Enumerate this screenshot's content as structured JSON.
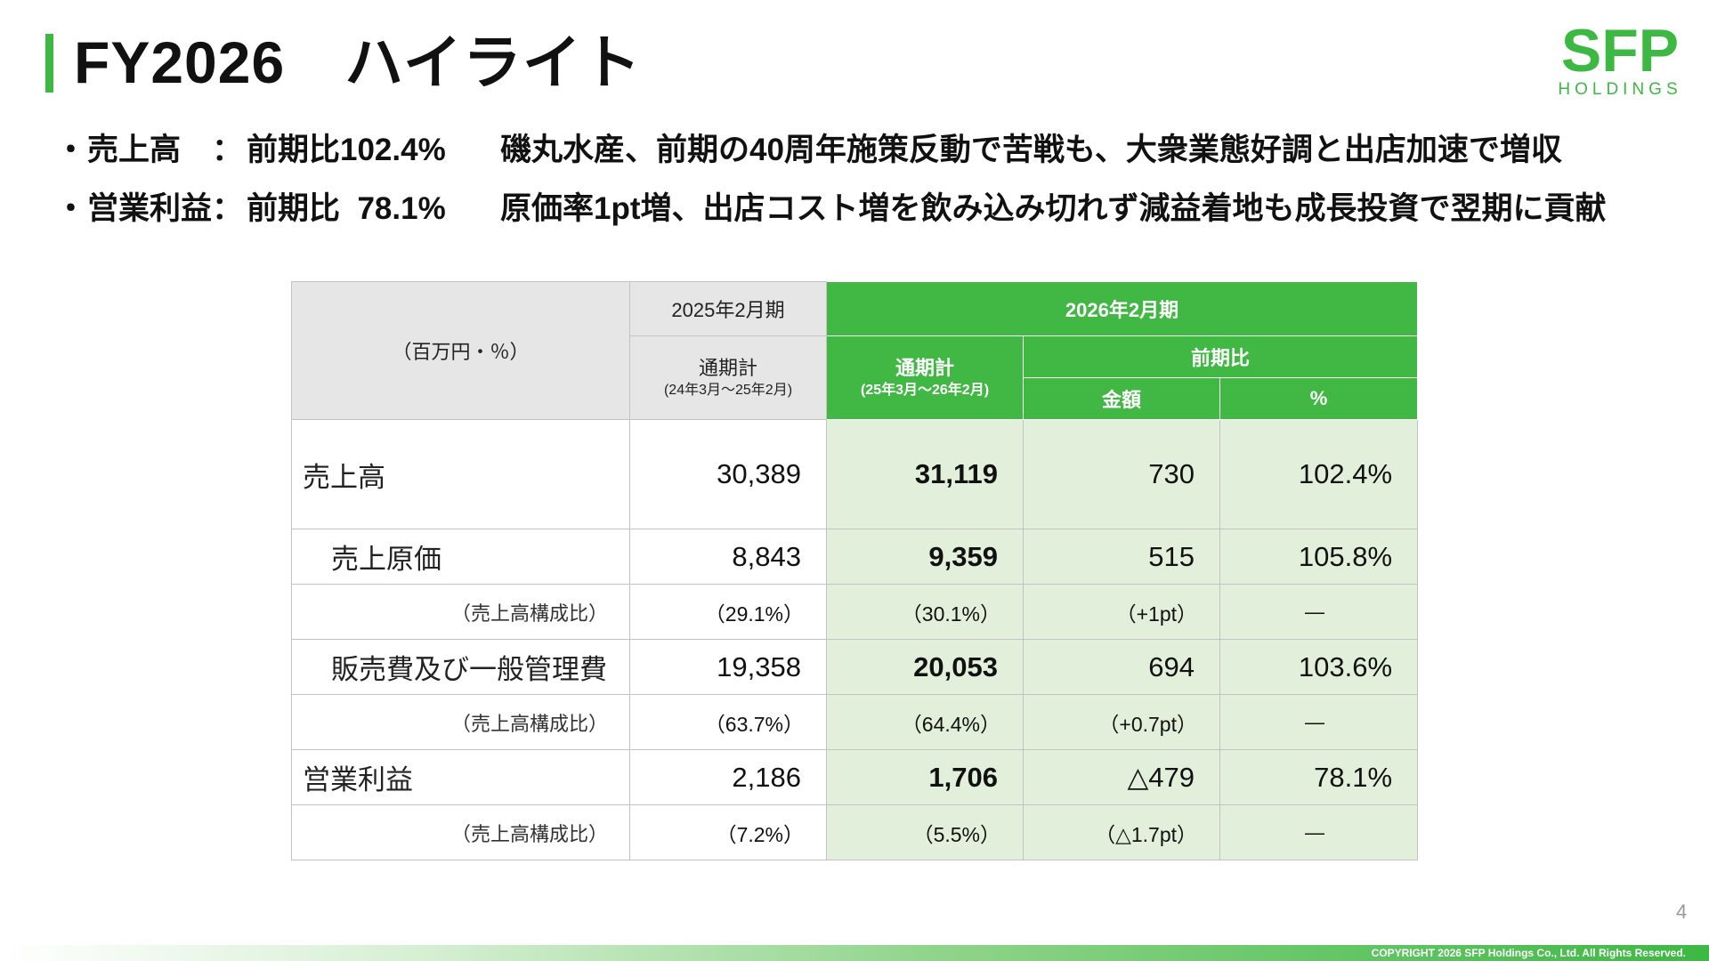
{
  "slide": {
    "title": "FY2026　ハイライト",
    "page_number": "4",
    "copyright": "COPYRIGHT 2026 SFP Holdings Co., Ltd. All Rights Reserved."
  },
  "logo": {
    "name": "sfp-holdings-logo",
    "main_text": "SFP",
    "sub_text": "HOLDINGS",
    "color": "#3db843"
  },
  "bullets": [
    {
      "dot": "・",
      "label": "売上高　：",
      "value": "前期比102.4%",
      "desc": "磯丸水産、前期の40周年施策反動で苦戦も、大衆業態好調と出店加速で増収"
    },
    {
      "dot": "・",
      "label": "営業利益：",
      "value": "前期比  78.1%",
      "desc": "原価率1pt増、出店コスト増を飲み込み切れず減益着地も成長投資で翌期に貢献"
    }
  ],
  "table": {
    "unit": "（百万円・％）",
    "prev_year": "2025年2月期",
    "curr_year": "2026年2月期",
    "prev_full": "通期計",
    "prev_range": "(24年3月～25年2月)",
    "curr_full": "通期計",
    "curr_range": "(25年3月～26年2月)",
    "yoy": "前期比",
    "yoy_amount": "金額",
    "yoy_pct": "%",
    "rows": [
      {
        "label": "売上高",
        "prev": "30,389",
        "curr": "31,119",
        "diff": "730",
        "pct": "102.4%"
      },
      {
        "label": "売上原価",
        "prev": "8,843",
        "curr": "9,359",
        "diff": "515",
        "pct": "105.8%",
        "sub_label": "（売上高構成比）",
        "sub_prev": "（29.1%）",
        "sub_curr": "（30.1%）",
        "sub_diff": "（+1pt）",
        "sub_pct": "―"
      },
      {
        "label": "販売費及び一般管理費",
        "prev": "19,358",
        "curr": "20,053",
        "diff": "694",
        "pct": "103.6%",
        "sub_label": "（売上高構成比）",
        "sub_prev": "（63.7%）",
        "sub_curr": "（64.4%）",
        "sub_diff": "（+0.7pt）",
        "sub_pct": "―"
      },
      {
        "label": "営業利益",
        "prev": "2,186",
        "curr": "1,706",
        "diff": "△479",
        "pct": "78.1%",
        "sub_label": "（売上高構成比）",
        "sub_prev": "（7.2%）",
        "sub_curr": "（5.5%）",
        "sub_diff": "（△1.7pt）",
        "sub_pct": "―"
      }
    ]
  }
}
